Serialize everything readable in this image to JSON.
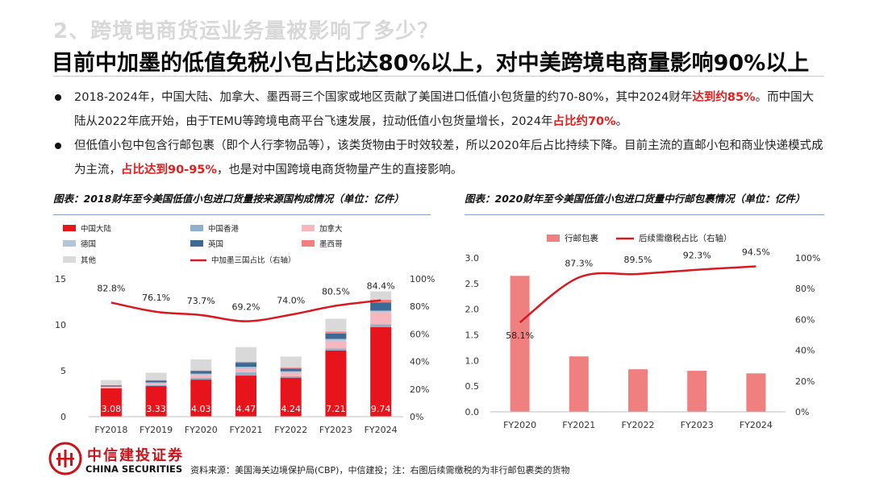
{
  "header": {
    "section_title": "2、跨境电商货运业务量被影响了多少？",
    "headline": "目前中加墨的低值免税小包占比达80%以上，对中美跨境电商量影响90%以上"
  },
  "bullets": [
    {
      "segments": [
        {
          "text": "2018-2024年，中国大陆、加拿大、墨西哥三个国家或地区贡献了美国进口低值小包货量的约70-80%，其中2024财年",
          "hl": false
        },
        {
          "text": "达到约85%",
          "hl": true
        },
        {
          "text": "。而中国大陆从2022年底开始，由于TEMU等跨境电商平台飞速发展，拉动低值小包货量增长，2024年",
          "hl": false
        },
        {
          "text": "占比约70%",
          "hl": true
        },
        {
          "text": "。",
          "hl": false
        }
      ]
    },
    {
      "segments": [
        {
          "text": "但低值小包中包含行邮包裹（即个人行李物品等），该类货物由于时效较差，所以2020年后占比持续下降。目前主流的直邮小包和商业快递模式成为主流，",
          "hl": false
        },
        {
          "text": "占比达到90-95%",
          "hl": true
        },
        {
          "text": "，也是对中国跨境电商货物量产生的直接影响。",
          "hl": false
        }
      ]
    }
  ],
  "footer": {
    "brand_cn": "中信建投证券",
    "brand_en": "CHINA SECURITIES",
    "source": "资料来源：美国海关边境保护局(CBP)，中信建投；注：右图后续需缴税的为非行邮包裹类的货物"
  },
  "colors": {
    "red": "#e8141c",
    "line_red": "#d71920",
    "brand_red": "#c8141b"
  },
  "chart_data": [
    {
      "type": "bar",
      "caption": "图表：2018财年至今美国低值小包进口货量按来源国构成情况（单位：亿件）",
      "categories": [
        "FY2018",
        "FY2019",
        "FY2020",
        "FY2021",
        "FY2022",
        "FY2023",
        "FY2024"
      ],
      "stacked": true,
      "series": [
        {
          "name": "中国大陆",
          "color": "#e8141c",
          "values": [
            3.08,
            3.33,
            4.03,
            4.47,
            4.24,
            7.21,
            9.74
          ],
          "value_labels": [
            "3.08",
            "3.33",
            "4.03",
            "4.47",
            "4.24",
            "7.21",
            "9.74"
          ]
        },
        {
          "name": "中国香港",
          "color": "#8fb0cc",
          "values": [
            0.05,
            0.1,
            0.2,
            0.35,
            0.15,
            0.2,
            0.3
          ]
        },
        {
          "name": "加拿大",
          "color": "#f6b7bf",
          "values": [
            0.1,
            0.2,
            0.3,
            0.4,
            0.4,
            0.85,
            1.3
          ]
        },
        {
          "name": "德国",
          "color": "#b3c5d9",
          "values": [
            0.05,
            0.1,
            0.15,
            0.2,
            0.15,
            0.2,
            0.2
          ]
        },
        {
          "name": "英国",
          "color": "#3d6a94",
          "values": [
            0.1,
            0.2,
            0.3,
            0.45,
            0.3,
            0.6,
            0.9
          ]
        },
        {
          "name": "墨西哥",
          "color": "#f08080",
          "values": [
            0.05,
            0.05,
            0.05,
            0.1,
            0.1,
            0.2,
            0.3
          ]
        },
        {
          "name": "其他",
          "color": "#d9d9d9",
          "values": [
            0.55,
            0.8,
            1.2,
            1.6,
            1.2,
            1.4,
            0.9
          ]
        }
      ],
      "line": {
        "name": "中加墨三国占比（右轴）",
        "color": "#d71920",
        "values": [
          82.8,
          76.1,
          73.7,
          69.2,
          74.0,
          80.5,
          84.4
        ],
        "labels": [
          "82.8%",
          "76.1%",
          "73.7%",
          "69.2%",
          "74.0%",
          "80.5%",
          "84.4%"
        ]
      },
      "y_left": {
        "min": 0,
        "max": 15,
        "ticks": [
          "0",
          "5",
          "10",
          "15"
        ]
      },
      "y_right": {
        "min": 0,
        "max": 100,
        "ticks": [
          "0%",
          "20%",
          "40%",
          "60%",
          "80%",
          "100%"
        ]
      },
      "legend": "top, three columns"
    },
    {
      "type": "bar",
      "caption": "图表：2020财年至今美国低值小包进口货量中行邮包裹情况（单位：亿件）",
      "categories": [
        "FY2020",
        "FY2021",
        "FY2022",
        "FY2023",
        "FY2024"
      ],
      "series": [
        {
          "name": "行邮包裹",
          "color": "#f08080",
          "values": [
            2.65,
            1.08,
            0.83,
            0.8,
            0.75
          ]
        }
      ],
      "line": {
        "name": "后续需缴税占比（右轴）",
        "color": "#d71920",
        "values": [
          58.1,
          87.3,
          89.5,
          92.3,
          94.5
        ],
        "labels": [
          "58.1%",
          "87.3%",
          "89.5%",
          "92.3%",
          "94.5%"
        ]
      },
      "y_left": {
        "min": 0,
        "max": 3.0,
        "ticks": [
          "0.0",
          "0.5",
          "1.0",
          "1.5",
          "2.0",
          "2.5",
          "3.0"
        ]
      },
      "y_right": {
        "min": 0,
        "max": 100,
        "ticks": [
          "0%",
          "20%",
          "40%",
          "60%",
          "80%",
          "100%"
        ]
      },
      "legend": "top"
    }
  ]
}
